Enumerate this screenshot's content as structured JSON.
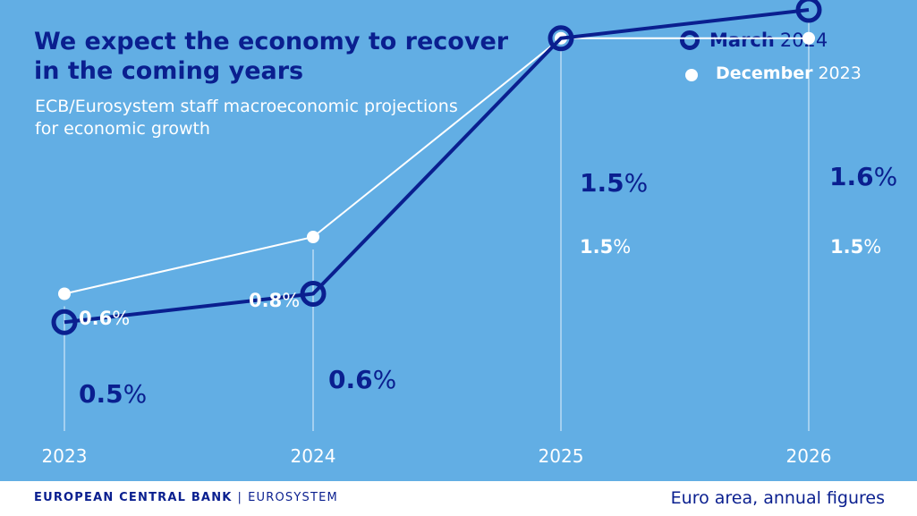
{
  "colors": {
    "background": "#62aee4",
    "march_series": "#0a1f8f",
    "december_series": "#ffffff",
    "footer_background": "#ffffff"
  },
  "header": {
    "title_line1": "We expect the economy to recover",
    "title_line2": "in the coming years",
    "subtitle_line1": "ECB/Eurosystem staff macroeconomic projections",
    "subtitle_line2": "for economic growth"
  },
  "legend": {
    "march_month": "March",
    "march_year": "2024",
    "december_month": "December",
    "december_year": "2023"
  },
  "footer": {
    "bank_name": "EUROPEAN CENTRAL BANK",
    "separator": "|",
    "bank_system": "EUROSYSTEM",
    "note": "Euro area, annual figures"
  },
  "chart_data": {
    "type": "line",
    "title": "We expect the economy to recover in the coming years",
    "subtitle": "ECB/Eurosystem staff macroeconomic projections for economic growth",
    "xlabel": "",
    "ylabel": "",
    "categories": [
      "2023",
      "2024",
      "2025",
      "2026"
    ],
    "unit": "%",
    "ylim": [
      0,
      2
    ],
    "grid": false,
    "legend_position": "top-right",
    "series": [
      {
        "name": "March 2024",
        "values": [
          0.5,
          0.6,
          1.5,
          1.6
        ]
      },
      {
        "name": "December 2023",
        "values": [
          0.6,
          0.8,
          1.5,
          1.5
        ]
      }
    ],
    "note": "Euro area, annual figures"
  }
}
